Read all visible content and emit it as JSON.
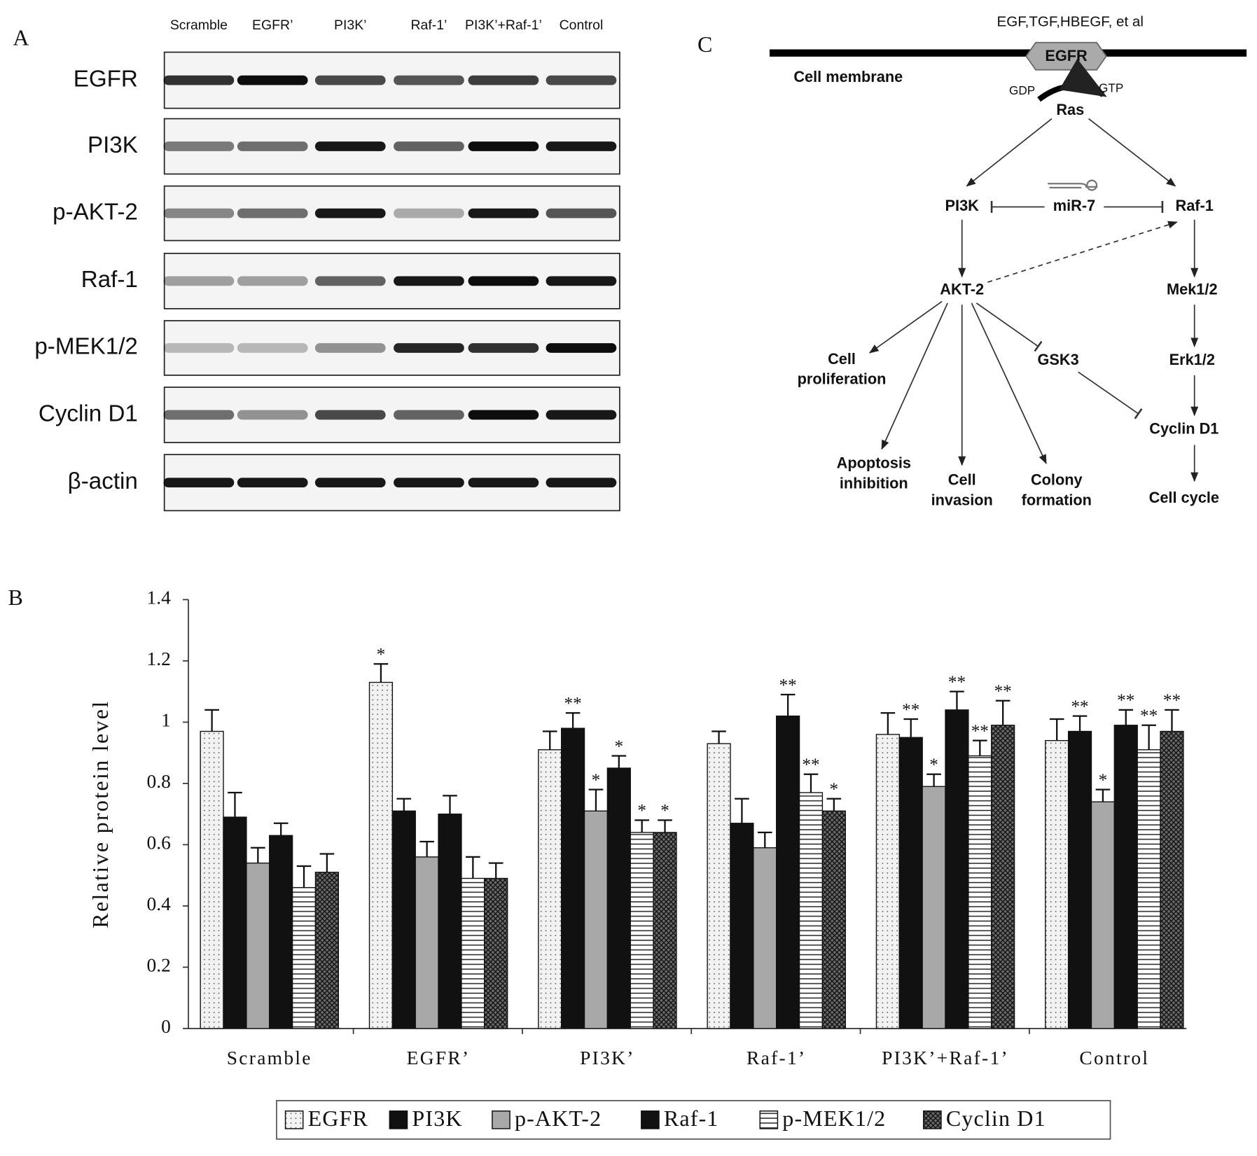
{
  "panel_labels": {
    "a": "A",
    "b": "B",
    "c": "C"
  },
  "blot": {
    "lanes": [
      "Scramble",
      "EGFR’",
      "PI3K’",
      "Raf-1’",
      "PI3K’+Raf-1’",
      "Control"
    ],
    "rows": [
      "EGFR",
      "PI3K",
      "p-AKT-2",
      "Raf-1",
      "p-MEK1/2",
      "Cyclin D1",
      "β-actin"
    ]
  },
  "diagram": {
    "ligands": "EGF,TGF,HBEGF, et al",
    "receptor": "EGFR",
    "membrane": "Cell membrane",
    "gdp": "GDP",
    "gtp": "GTP",
    "nodes": [
      {
        "lines": [
          "Ras"
        ]
      },
      {
        "lines": [
          "PI3K"
        ]
      },
      {
        "lines": [
          "miR-7"
        ]
      },
      {
        "lines": [
          "Raf-1"
        ]
      },
      {
        "lines": [
          "AKT-2"
        ]
      },
      {
        "lines": [
          "Mek1/2"
        ]
      },
      {
        "lines": [
          "GSK3"
        ]
      },
      {
        "lines": [
          "Erk1/2"
        ]
      },
      {
        "lines": [
          "Cell",
          "proliferation"
        ]
      },
      {
        "lines": [
          "Cyclin D1"
        ]
      },
      {
        "lines": [
          "Apoptosis",
          "inhibition"
        ]
      },
      {
        "lines": [
          "Cell",
          "invasion"
        ]
      },
      {
        "lines": [
          "Colony",
          "formation"
        ]
      },
      {
        "lines": [
          "Cell cycle"
        ]
      }
    ]
  },
  "chart_data": {
    "type": "bar",
    "y_label": "Relative protein level",
    "categories": [
      "Scramble",
      "EGFR’",
      "PI3K’",
      "Raf-1’",
      "PI3K’+Raf-1’",
      "Control"
    ],
    "ylim": [
      0,
      1.4
    ],
    "yticks": [
      0,
      0.2,
      0.4,
      0.6,
      0.8,
      1,
      1.2,
      1.4
    ],
    "series": [
      {
        "name": "EGFR",
        "color": "#f2f2f2",
        "pattern": "dots",
        "values": [
          0.97,
          1.13,
          0.91,
          0.93,
          0.96,
          0.94
        ],
        "errors": [
          0.07,
          0.06,
          0.06,
          0.04,
          0.07,
          0.07
        ],
        "annotations": [
          null,
          "*",
          null,
          null,
          null,
          null
        ]
      },
      {
        "name": "PI3K",
        "color": "#111111",
        "pattern": "solid",
        "values": [
          0.69,
          0.71,
          0.98,
          0.67,
          0.95,
          0.97
        ],
        "errors": [
          0.08,
          0.04,
          0.05,
          0.08,
          0.06,
          0.05
        ],
        "annotations": [
          null,
          null,
          "**",
          null,
          "**",
          "**"
        ]
      },
      {
        "name": "p-AKT-2",
        "color": "#a8a8a8",
        "pattern": "solid",
        "values": [
          0.54,
          0.56,
          0.71,
          0.59,
          0.79,
          0.74
        ],
        "errors": [
          0.05,
          0.05,
          0.07,
          0.05,
          0.04,
          0.04
        ],
        "annotations": [
          null,
          null,
          "*",
          null,
          "*",
          "*"
        ]
      },
      {
        "name": "Raf-1",
        "color": "#111111",
        "pattern": "solid",
        "values": [
          0.63,
          0.7,
          0.85,
          1.02,
          1.04,
          0.99
        ],
        "errors": [
          0.04,
          0.06,
          0.04,
          0.07,
          0.06,
          0.05
        ],
        "annotations": [
          null,
          null,
          "*",
          "**",
          "**",
          "**"
        ]
      },
      {
        "name": "p-MEK1/2",
        "color": "#ffffff",
        "pattern": "hstripes",
        "values": [
          0.46,
          0.49,
          0.64,
          0.77,
          0.89,
          0.91
        ],
        "errors": [
          0.07,
          0.07,
          0.04,
          0.06,
          0.05,
          0.08
        ],
        "annotations": [
          null,
          null,
          "*",
          "**",
          "**",
          "**"
        ]
      },
      {
        "name": "Cyclin D1",
        "color": "#6a6a6a",
        "pattern": "crosshatch",
        "values": [
          0.51,
          0.49,
          0.64,
          0.71,
          0.99,
          0.97
        ],
        "errors": [
          0.06,
          0.05,
          0.04,
          0.04,
          0.08,
          0.07
        ],
        "annotations": [
          null,
          null,
          "*",
          "*",
          "**",
          "**"
        ]
      }
    ]
  }
}
